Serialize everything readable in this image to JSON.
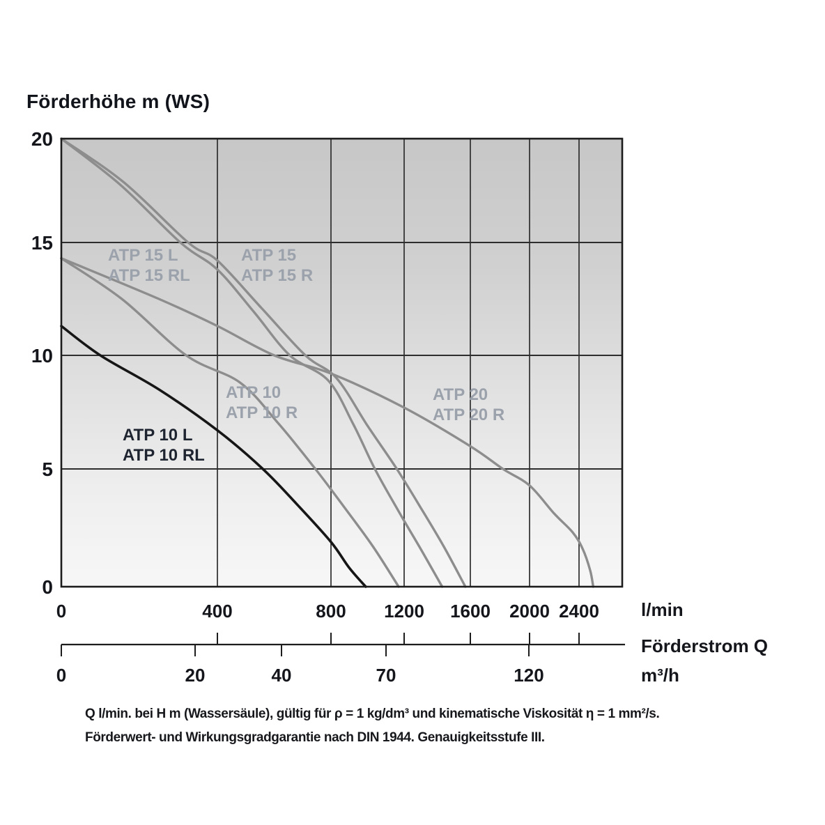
{
  "title": "Förderhöhe m (WS)",
  "axes": {
    "y": {
      "ticks": [
        20,
        15,
        10,
        5,
        0
      ]
    },
    "x_lmin": {
      "ticks": [
        0,
        400,
        800,
        1200,
        1600,
        2000,
        2400
      ],
      "unit": "l/min"
    },
    "x_m3h": {
      "ticks": [
        0,
        20,
        40,
        70,
        120
      ],
      "unit": "m³/h",
      "axis_label": "Förderstrom Q"
    }
  },
  "footer": {
    "line1": "Q l/min. bei H m (Wassersäule), gültig für ρ = 1 kg/dm³ und kinematische Viskosität η = 1 mm²/s.",
    "line2": "Förderwert- und Wirkungsgradgarantie nach DIN 1944. Genauigkeitsstufe III."
  },
  "colors": {
    "gray_curve": "#8d8d8d",
    "black_curve": "#161616",
    "gray_label": "#9ba2ac",
    "dark_label": "#1e2430",
    "grid": "#2d2d2d",
    "border": "#1c1c1c",
    "plot_top": "#c7c7c7",
    "plot_bottom": "#f7f7f7",
    "tick_text": "#14161c"
  },
  "chart_data": {
    "type": "line",
    "title": "Förderhöhe m (WS)",
    "xlabel": "Förderstrom Q",
    "ylabel": "Förderhöhe m (WS)",
    "x_units": [
      "l/min",
      "m³/h"
    ],
    "ylim": [
      0,
      20
    ],
    "xlim_lmin": [
      0,
      2750
    ],
    "x_ticks_lmin": [
      0,
      400,
      800,
      1200,
      1600,
      2000,
      2400
    ],
    "x_ticks_m3h": [
      0,
      20,
      40,
      70,
      120
    ],
    "grid": true,
    "x_scale": "nonlinear-compressed-right",
    "series": [
      {
        "name": "ATP 15 L / ATP 15 RL",
        "models": [
          "ATP 15 L",
          "ATP 15 RL"
        ],
        "color": "gray",
        "points": [
          [
            0,
            20
          ],
          [
            150,
            17.8
          ],
          [
            305,
            15
          ],
          [
            400,
            13.8
          ],
          [
            530,
            11.9
          ],
          [
            655,
            10
          ],
          [
            790,
            8.9
          ],
          [
            920,
            7.0
          ],
          [
            1040,
            5
          ],
          [
            1170,
            3.2
          ],
          [
            1300,
            1.6
          ],
          [
            1430,
            0
          ]
        ]
      },
      {
        "name": "ATP 15 / ATP 15 R",
        "models": [
          "ATP 15",
          "ATP 15 R"
        ],
        "color": "gray",
        "points": [
          [
            0,
            20
          ],
          [
            160,
            17.9
          ],
          [
            325,
            15
          ],
          [
            400,
            14.2
          ],
          [
            555,
            12.1
          ],
          [
            710,
            10
          ],
          [
            830,
            9.0
          ],
          [
            1000,
            6.9
          ],
          [
            1160,
            5
          ],
          [
            1305,
            3.3
          ],
          [
            1440,
            1.7
          ],
          [
            1570,
            0
          ]
        ]
      },
      {
        "name": "ATP 10 / ATP 10 R",
        "models": [
          "ATP 10",
          "ATP 10 R"
        ],
        "color": "gray",
        "points": [
          [
            0,
            14.3
          ],
          [
            155,
            12.5
          ],
          [
            320,
            10
          ],
          [
            480,
            8.8
          ],
          [
            615,
            7.0
          ],
          [
            745,
            5
          ],
          [
            880,
            3.3
          ],
          [
            1030,
            1.7
          ],
          [
            1170,
            0
          ]
        ]
      },
      {
        "name": "ATP 20 / ATP 20 R",
        "models": [
          "ATP 20",
          "ATP 20 R"
        ],
        "color": "gray",
        "points": [
          [
            0,
            14.3
          ],
          [
            250,
            12.5
          ],
          [
            400,
            11.3
          ],
          [
            600,
            10
          ],
          [
            800,
            9.2
          ],
          [
            1200,
            7.7
          ],
          [
            1600,
            6.0
          ],
          [
            1820,
            5
          ],
          [
            2000,
            4.3
          ],
          [
            2200,
            3.1
          ],
          [
            2350,
            2.3
          ],
          [
            2430,
            1.6
          ],
          [
            2490,
            0.7
          ],
          [
            2515,
            0
          ]
        ]
      },
      {
        "name": "ATP 10 L / ATP 10 RL",
        "models": [
          "ATP 10 L",
          "ATP 10 RL"
        ],
        "color": "black",
        "points": [
          [
            0,
            11.3
          ],
          [
            100,
            10
          ],
          [
            250,
            8.5
          ],
          [
            400,
            6.7
          ],
          [
            560,
            5
          ],
          [
            680,
            3.5
          ],
          [
            800,
            1.9
          ],
          [
            900,
            0.8
          ],
          [
            990,
            0
          ]
        ]
      }
    ]
  }
}
